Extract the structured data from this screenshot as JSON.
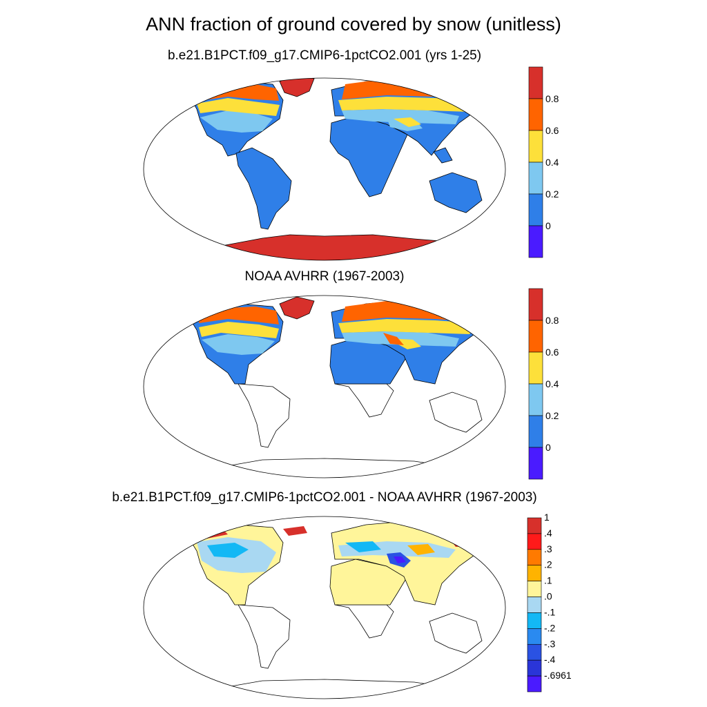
{
  "title": "ANN fraction of ground covered by snow (unitless)",
  "panels": [
    {
      "id": "model",
      "title": "b.e21.B1PCT.f09_g17.CMIP6-1pctCO2.001 (yrs 1-25)",
      "colorbar": {
        "labels": [
          "0.8",
          "0.6",
          "0.4",
          "0.2",
          "0"
        ],
        "colors": [
          "#d7302b",
          "#ff6400",
          "#fde03a",
          "#7ec8f0",
          "#2f7fe8",
          "#4a1bff"
        ]
      }
    },
    {
      "id": "obs",
      "title": "NOAA AVHRR (1967-2003)",
      "colorbar": {
        "labels": [
          "0.8",
          "0.6",
          "0.4",
          "0.2",
          "0"
        ],
        "colors": [
          "#d7302b",
          "#ff6400",
          "#fde03a",
          "#7ec8f0",
          "#2f7fe8",
          "#4a1bff"
        ]
      }
    },
    {
      "id": "diff",
      "title": "b.e21.B1PCT.f09_g17.CMIP6-1pctCO2.001 - NOAA AVHRR (1967-2003)",
      "colorbar": {
        "labels": [
          "1",
          ".4",
          ".3",
          ".2",
          ".1",
          ".0",
          "-.1",
          "-.2",
          "-.3",
          "-.4",
          "-.6961"
        ],
        "colors": [
          "#d7302b",
          "#ff1a1a",
          "#ff7a00",
          "#ffb300",
          "#fff59a",
          "#a9d8f2",
          "#13b8f5",
          "#2a8af0",
          "#2a52e3",
          "#2a35d8",
          "#4a1bff"
        ]
      }
    }
  ]
}
